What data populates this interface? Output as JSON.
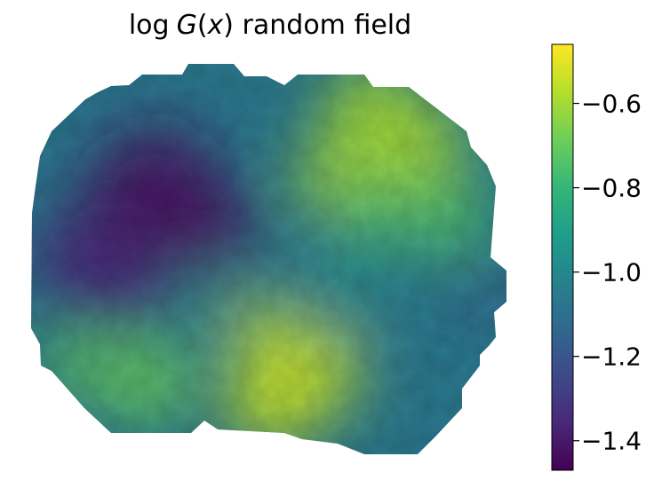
{
  "chart_data": {
    "type": "heatmap",
    "title_parts": {
      "func": "log",
      "var_G": "G",
      "paren_open": "(",
      "var_x": "x",
      "paren_close": ")",
      "rest": " random field"
    },
    "colormap": "viridis",
    "colorbar": {
      "range": [
        -1.47,
        -0.46
      ],
      "ticks": [
        -1.4,
        -1.2,
        -1.0,
        -0.8,
        -0.6
      ],
      "tick_labels": [
        "−1.4",
        "−1.2",
        "−1.0",
        "−0.8",
        "−0.6"
      ],
      "colors": [
        "#440154",
        "#482878",
        "#3e4989",
        "#31688e",
        "#26828e",
        "#1f9e89",
        "#35b779",
        "#6ece58",
        "#b5de2b",
        "#fde725"
      ]
    },
    "field_hotspots": [
      {
        "region": "upper-left",
        "value": -1.42
      },
      {
        "region": "center-left",
        "value": -1.35
      },
      {
        "region": "upper-right",
        "value": -0.6
      },
      {
        "region": "right-middle",
        "value": -0.75
      },
      {
        "region": "lower-center",
        "value": -0.55
      },
      {
        "region": "lower-left",
        "value": -0.7
      },
      {
        "region": "far-right",
        "value": -1.2
      },
      {
        "region": "center",
        "value": -1.0
      }
    ],
    "grid": false,
    "axes_visible": false
  }
}
